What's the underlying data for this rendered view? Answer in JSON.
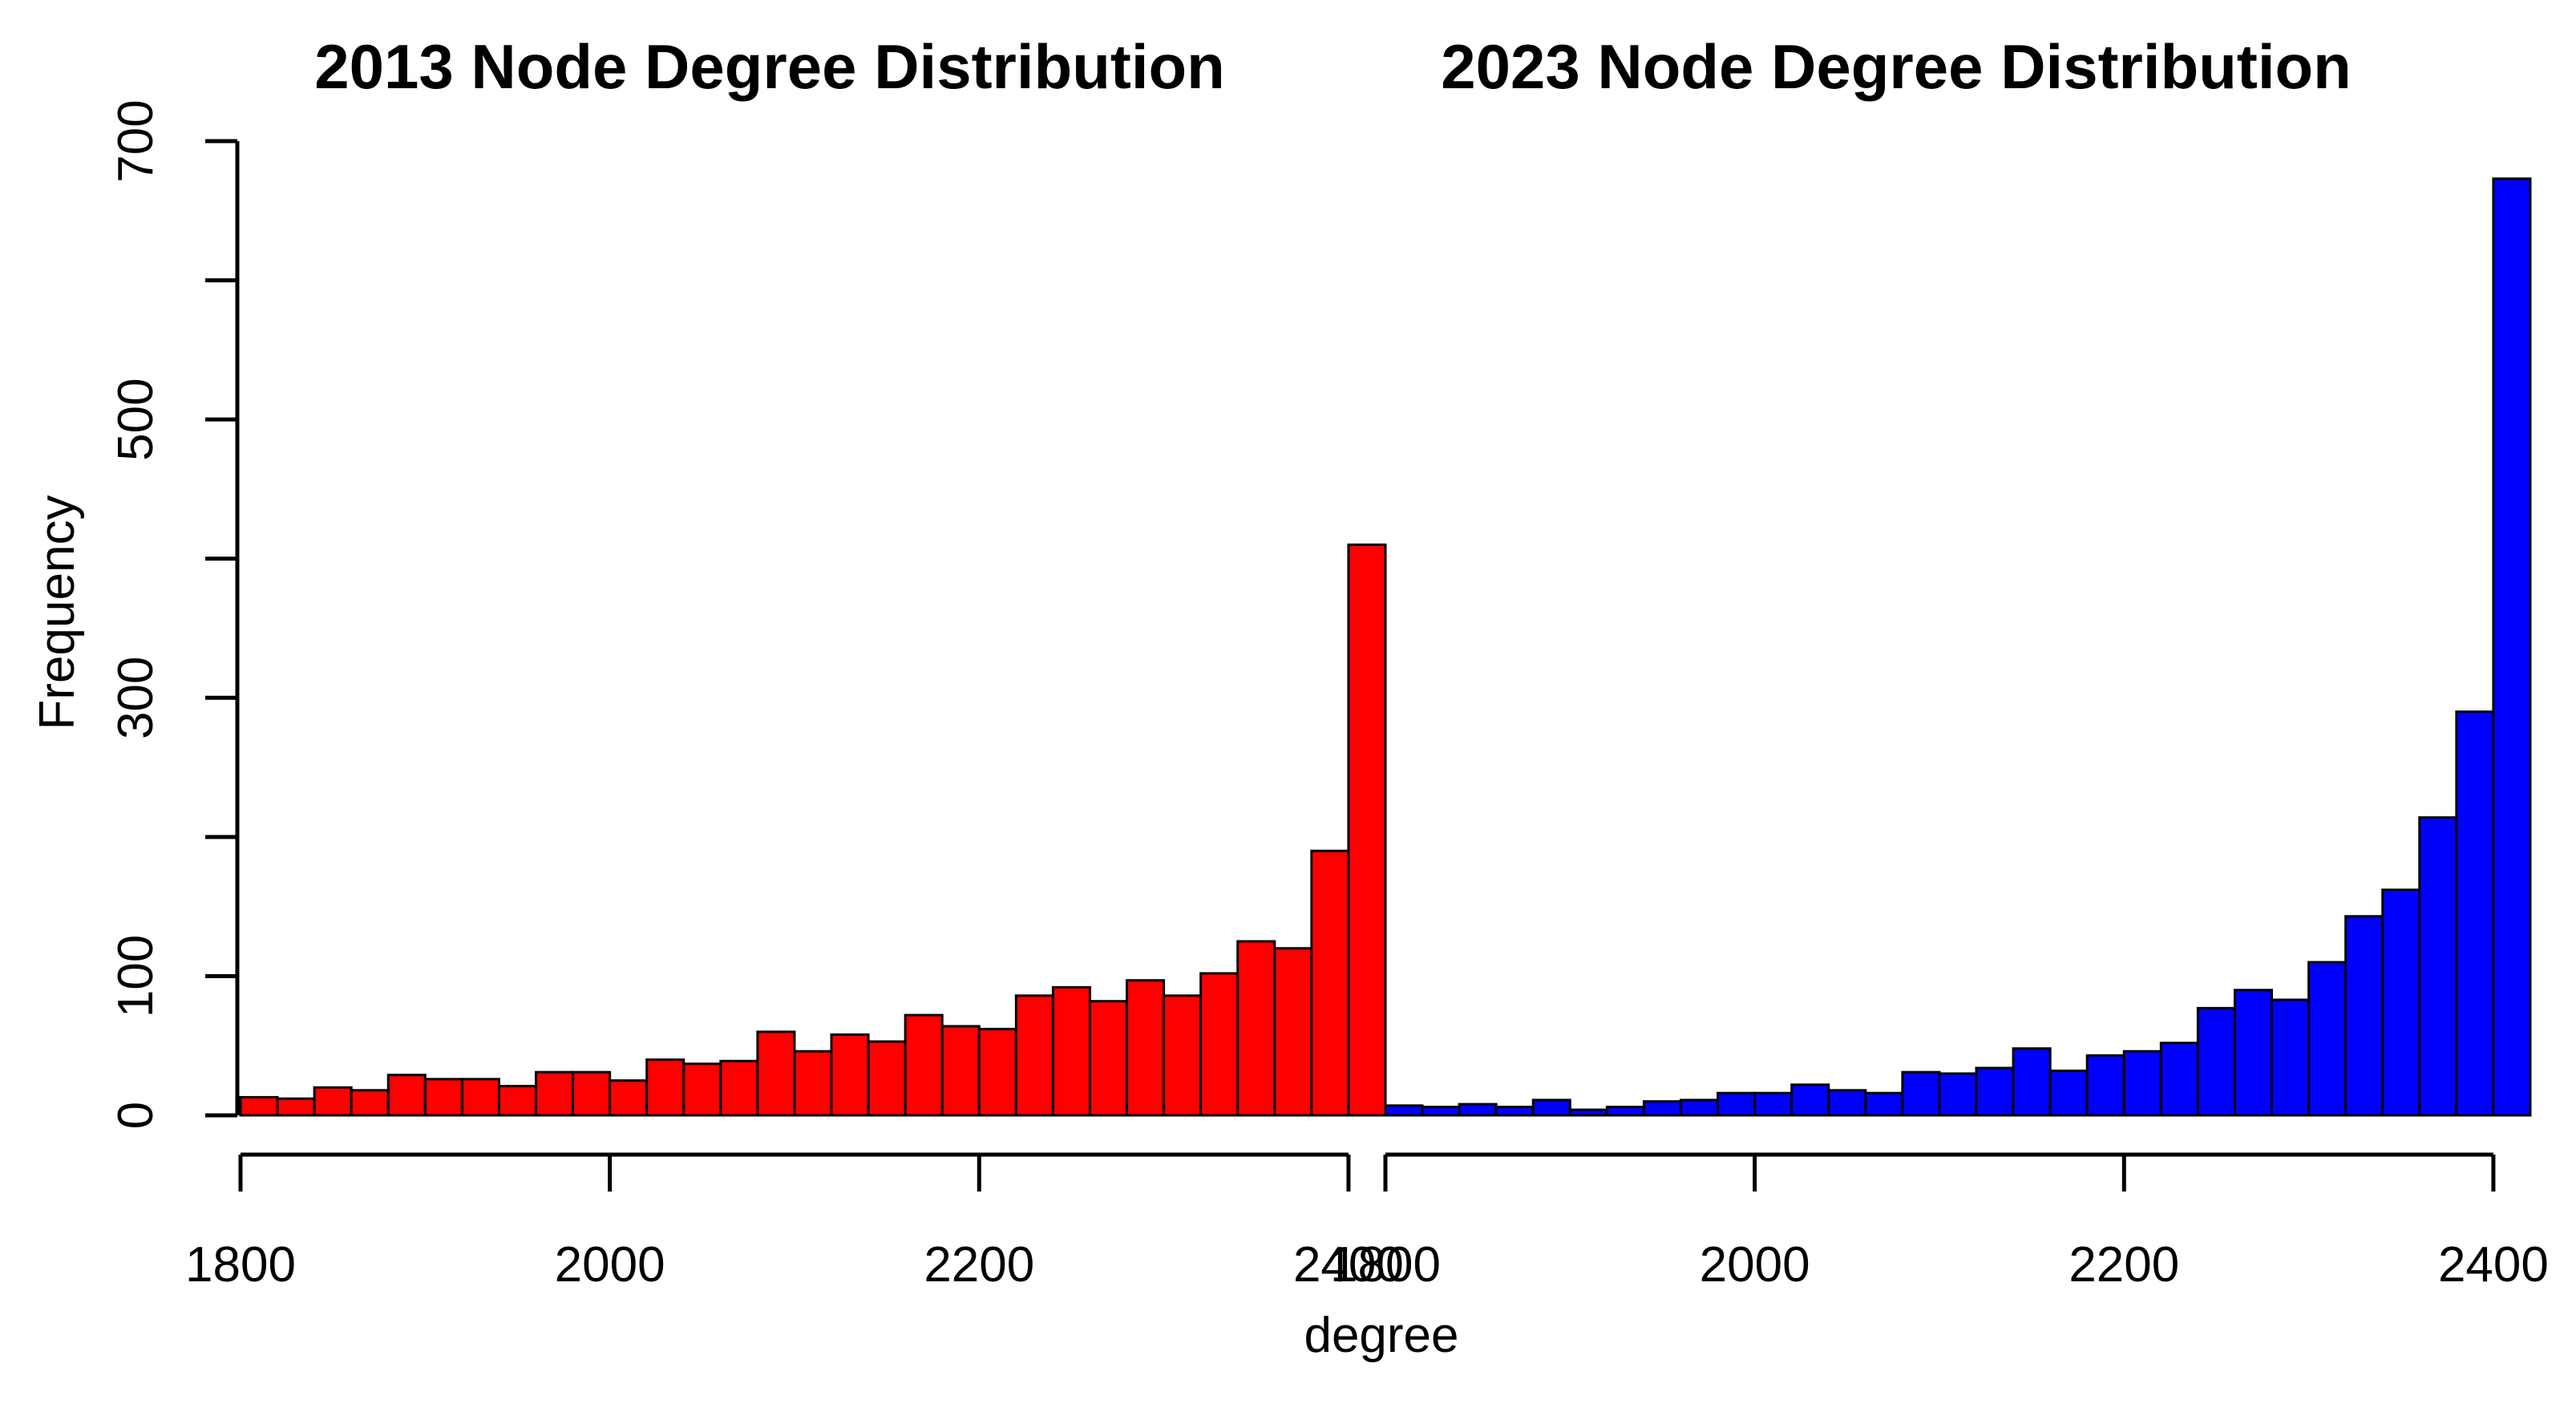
{
  "chart_data": {
    "type": "bar",
    "ylabel": "Frequency",
    "xlabel": "degree",
    "ylim": [
      0,
      700
    ],
    "y_ticks": [
      "0",
      "100",
      "300",
      "500",
      "700"
    ],
    "y_tick_values": [
      0,
      100,
      300,
      500,
      700
    ],
    "y_minor_tick_values": [
      200,
      400,
      600
    ],
    "panels": [
      {
        "title": "2013 Node Degree Distribution",
        "color": "#ff0000",
        "xlim": [
          1800,
          2420
        ],
        "bin_width": 20,
        "x_ticks": [
          "1800",
          "2000",
          "2200",
          "2400"
        ],
        "x_tick_values": [
          1800,
          2000,
          2200,
          2400
        ],
        "values": [
          13,
          12,
          20,
          18,
          29,
          26,
          26,
          21,
          31,
          31,
          25,
          40,
          37,
          39,
          60,
          46,
          58,
          53,
          72,
          64,
          62,
          86,
          92,
          82,
          97,
          86,
          102,
          125,
          120,
          190,
          410
        ]
      },
      {
        "title": "2023 Node Degree Distribution",
        "color": "#0000ff",
        "xlim": [
          1800,
          2420
        ],
        "bin_width": 20,
        "x_ticks": [
          "1800",
          "2000",
          "2200",
          "2400"
        ],
        "x_tick_values": [
          1800,
          2000,
          2200,
          2400
        ],
        "values": [
          7,
          6,
          8,
          6,
          11,
          4,
          6,
          10,
          11,
          16,
          16,
          22,
          18,
          16,
          31,
          30,
          34,
          48,
          32,
          43,
          46,
          52,
          77,
          90,
          83,
          110,
          143,
          162,
          214,
          290,
          673
        ]
      }
    ]
  }
}
